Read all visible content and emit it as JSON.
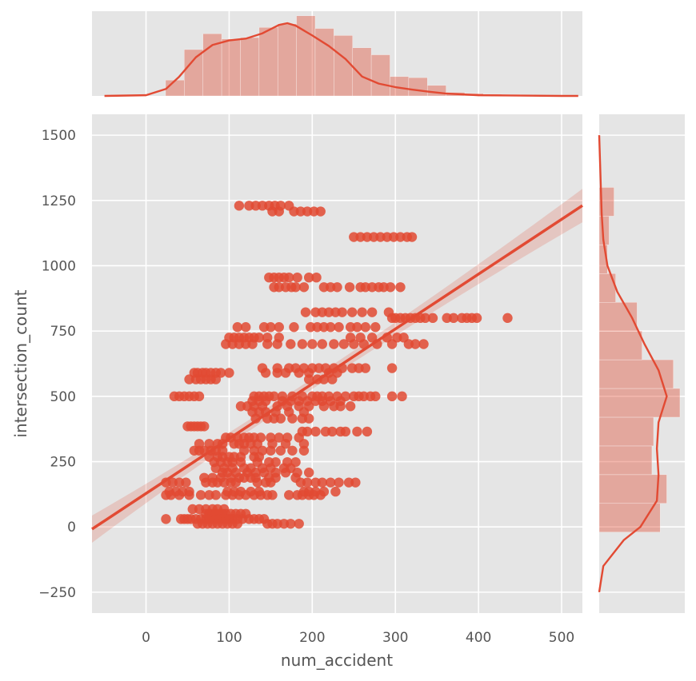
{
  "chart_data": {
    "type": "scatter",
    "kind": "jointplot",
    "xlabel": "num_accident",
    "ylabel": "intersection_count",
    "xlim": [
      -65,
      525
    ],
    "ylim": [
      -330,
      1580
    ],
    "x_ticks": [
      0,
      100,
      200,
      300,
      400,
      500
    ],
    "y_ticks": [
      -250,
      0,
      250,
      500,
      750,
      1000,
      1250,
      1500
    ],
    "grid": true,
    "color": "#E24A33",
    "background": "#E5E5E5",
    "clusters": [
      {
        "y": 1230,
        "x": [
          112,
          124,
          132,
          140,
          148,
          155,
          162,
          172
        ]
      },
      {
        "y": 1208,
        "x": [
          152,
          160,
          178,
          186,
          194,
          202,
          210
        ]
      },
      {
        "y": 1110,
        "x": [
          250,
          258,
          266,
          274,
          282,
          290,
          298,
          306,
          314,
          320
        ]
      },
      {
        "y": 955,
        "x": [
          148,
          154,
          160,
          166,
          172,
          182,
          196,
          205
        ]
      },
      {
        "y": 918,
        "x": [
          154,
          160,
          168,
          175,
          180,
          190,
          214,
          222,
          230,
          245,
          258,
          264,
          272,
          280,
          286,
          294,
          306
        ]
      },
      {
        "y": 822,
        "x": [
          192,
          204,
          212,
          220,
          228,
          236,
          248,
          260,
          272,
          292
        ]
      },
      {
        "y": 800,
        "x": [
          296,
          300,
          306,
          312,
          318,
          324,
          330,
          336,
          345,
          362,
          370,
          380,
          386,
          392,
          398,
          435
        ]
      },
      {
        "y": 765,
        "x": [
          110,
          120,
          142,
          150,
          160,
          178,
          198,
          206,
          214,
          222,
          232,
          246,
          254,
          264,
          276
        ]
      },
      {
        "y": 725,
        "x": [
          100,
          106,
          112,
          118,
          124,
          130,
          136,
          146,
          160,
          246,
          258,
          272,
          290,
          302,
          310
        ]
      },
      {
        "y": 700,
        "x": [
          96,
          104,
          112,
          120,
          128,
          146,
          158,
          174,
          188,
          200,
          212,
          226,
          238,
          250,
          262,
          278,
          296,
          316,
          324,
          334
        ]
      },
      {
        "y": 608,
        "x": [
          140,
          158,
          172,
          180,
          190,
          200,
          208,
          216,
          226,
          236,
          248,
          256,
          264,
          296
        ]
      },
      {
        "y": 590,
        "x": [
          58,
          62,
          68,
          72,
          78,
          84,
          90,
          100,
          144,
          158,
          168,
          184,
          196,
          220,
          230
        ]
      },
      {
        "y": 565,
        "x": [
          52,
          60,
          66,
          72,
          78,
          84,
          196,
          206,
          214,
          224
        ]
      },
      {
        "y": 500,
        "x": [
          34,
          40,
          46,
          52,
          58,
          64,
          130,
          136,
          142,
          148,
          154,
          164,
          176,
          188,
          200,
          206,
          212,
          220,
          230,
          240,
          250,
          256,
          262,
          270,
          276,
          296,
          308
        ]
      },
      {
        "y": 482,
        "x": [
          128,
          136,
          144,
          164,
          174,
          184,
          194,
          204,
          212,
          222,
          234
        ]
      },
      {
        "y": 462,
        "x": [
          114,
          122,
          130,
          140,
          158,
          170,
          184,
          196,
          214,
          226,
          234,
          246
        ]
      },
      {
        "y": 440,
        "x": [
          128,
          136,
          144,
          156,
          172,
          190
        ]
      },
      {
        "y": 415,
        "x": [
          132,
          146,
          154,
          162,
          176,
          188,
          196
        ]
      },
      {
        "y": 385,
        "x": [
          50,
          54,
          58,
          62,
          66,
          70
        ]
      },
      {
        "y": 365,
        "x": [
          188,
          194,
          204,
          216,
          224,
          234,
          240,
          254,
          266
        ]
      },
      {
        "y": 342,
        "x": [
          96,
          102,
          110,
          118,
          124,
          130,
          138,
          150,
          160,
          170,
          184
        ]
      },
      {
        "y": 318,
        "x": [
          64,
          76,
          86,
          92,
          106,
          112,
          118,
          126,
          134,
          152,
          168,
          190
        ]
      },
      {
        "y": 292,
        "x": [
          58,
          64,
          70,
          78,
          84,
          92,
          118,
          130,
          140,
          150,
          162,
          176,
          190
        ]
      },
      {
        "y": 268,
        "x": [
          76,
          86,
          92,
          100,
          106,
          114,
          130,
          136
        ]
      },
      {
        "y": 248,
        "x": [
          82,
          90,
          98,
          104,
          114,
          134,
          148,
          156,
          170,
          180
        ]
      },
      {
        "y": 225,
        "x": [
          84,
          94,
          104,
          118,
          126,
          140,
          150,
          166,
          174
        ]
      },
      {
        "y": 208,
        "x": [
          92,
          98,
          108,
          122,
          132,
          142,
          156,
          168,
          182,
          196
        ]
      },
      {
        "y": 188,
        "x": [
          70,
          80,
          90,
          102,
          112,
          118,
          126,
          132,
          148,
          156,
          180
        ]
      },
      {
        "y": 170,
        "x": [
          24,
          32,
          40,
          48,
          72,
          80,
          86,
          94,
          102,
          108,
          134,
          144,
          150,
          186,
          194,
          204,
          212,
          222,
          232,
          244,
          252
        ]
      },
      {
        "y": 135,
        "x": [
          28,
          36,
          44,
          52,
          98,
          106,
          114,
          126,
          136,
          190,
          196,
          204,
          214,
          228
        ]
      },
      {
        "y": 122,
        "x": [
          24,
          30,
          40,
          52,
          66,
          76,
          84,
          96,
          104,
          112,
          120,
          130,
          138,
          146,
          152,
          172,
          182,
          188,
          196,
          202,
          210
        ]
      },
      {
        "y": 68,
        "x": [
          56,
          64,
          72,
          80,
          86,
          94
        ]
      },
      {
        "y": 50,
        "x": [
          72,
          76,
          80,
          84,
          88,
          92,
          96,
          102,
          108,
          114,
          120
        ]
      },
      {
        "y": 30,
        "x": [
          24,
          42,
          46,
          50,
          54,
          60,
          66,
          72,
          76,
          80,
          84,
          88,
          92,
          96,
          100,
          104,
          110,
          116,
          124,
          130,
          136,
          142
        ]
      },
      {
        "y": 12,
        "x": [
          62,
          68,
          74,
          80,
          86,
          92,
          98,
          104,
          110,
          146,
          152,
          158,
          166,
          174,
          184
        ]
      }
    ],
    "regression": {
      "slope": 2.1,
      "intercept": 128,
      "ci_halfwidth_start": 52,
      "ci_halfwidth_center": 20,
      "ci_halfwidth_end": 64,
      "x_center": 175
    },
    "marginal_x_hist": {
      "bin_edges": [
        23.5,
        46,
        68.5,
        91,
        113.5,
        136,
        158.5,
        181,
        203.5,
        226,
        248.5,
        271,
        293.5,
        316,
        338.5,
        361,
        383.5,
        406,
        428.5,
        451
      ],
      "density": [
        0.45,
        1.32,
        1.77,
        1.62,
        1.66,
        1.95,
        2.05,
        2.28,
        1.92,
        1.72,
        1.37,
        1.17,
        0.55,
        0.52,
        0.3,
        0.1,
        0.07,
        0.05,
        0.04
      ],
      "kde_x": [
        -50,
        0,
        24,
        40,
        60,
        80,
        100,
        120,
        140,
        160,
        170,
        180,
        200,
        220,
        240,
        260,
        280,
        300,
        320,
        340,
        360,
        400,
        450,
        500,
        520
      ],
      "kde_y": [
        0,
        0.02,
        0.2,
        0.55,
        1.1,
        1.45,
        1.58,
        1.63,
        1.78,
        2.02,
        2.07,
        2.0,
        1.72,
        1.42,
        1.05,
        0.55,
        0.35,
        0.25,
        0.18,
        0.12,
        0.07,
        0.02,
        0.01,
        0,
        0
      ]
    },
    "marginal_y_hist": {
      "bin_edges": [
        -20,
        90,
        200,
        310,
        420,
        530,
        640,
        750,
        860,
        970,
        1080,
        1190,
        1300
      ],
      "density": [
        0.74,
        0.82,
        0.64,
        0.66,
        0.98,
        0.9,
        0.52,
        0.46,
        0.2,
        0.1,
        0.12,
        0.18
      ],
      "kde_y": [
        -250,
        -150,
        -50,
        0,
        100,
        200,
        300,
        400,
        500,
        600,
        700,
        800,
        900,
        1000,
        1100,
        1200,
        1300,
        1400,
        1500
      ],
      "kde_x": [
        0,
        0.05,
        0.3,
        0.5,
        0.7,
        0.72,
        0.7,
        0.72,
        0.82,
        0.72,
        0.55,
        0.4,
        0.22,
        0.1,
        0.05,
        0.03,
        0.02,
        0.01,
        0
      ]
    }
  }
}
